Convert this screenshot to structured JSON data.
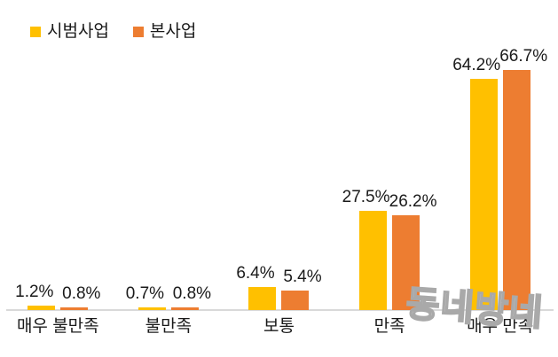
{
  "chart_data": {
    "type": "bar",
    "categories": [
      "매우 불만족",
      "불만족",
      "보통",
      "만족",
      "매우 만족"
    ],
    "series": [
      {
        "name": "시범사업",
        "color": "#FFC000",
        "values": [
          1.2,
          0.7,
          6.4,
          27.5,
          64.2
        ]
      },
      {
        "name": "본사업",
        "color": "#ED7D31",
        "values": [
          0.8,
          0.8,
          5.4,
          26.2,
          66.7
        ]
      }
    ],
    "value_suffix": "%",
    "title": "",
    "xlabel": "",
    "ylabel": "",
    "ylim": [
      0,
      70
    ],
    "grid": false,
    "legend_position": "top-left",
    "axis_line_color": "#d9d9d9",
    "label_color": "#1a1a1a"
  },
  "watermark": {
    "text": "동네방네"
  }
}
